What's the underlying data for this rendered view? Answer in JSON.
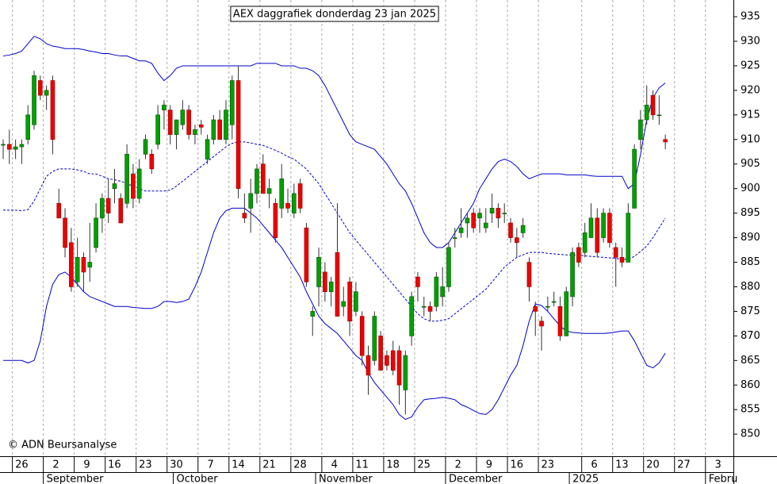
{
  "chart_data": {
    "type": "candlestick",
    "title": "AEX daggrafiek donderdag 23 jan 2025",
    "annotation": "© ADN Beursanalyse",
    "categories": [
      null,
      null,
      "26",
      null,
      null,
      null,
      null,
      "2",
      null,
      null,
      null,
      null,
      "9",
      null,
      null,
      null,
      null,
      "16",
      null,
      null,
      null,
      null,
      "23",
      null,
      null,
      null,
      null,
      "30",
      null,
      null,
      null,
      null,
      "7",
      null,
      null,
      null,
      null,
      "14",
      null,
      null,
      null,
      null,
      "21",
      null,
      null,
      null,
      null,
      "28",
      null,
      null,
      null,
      null,
      "4",
      null,
      null,
      null,
      null,
      "11",
      null,
      null,
      null,
      null,
      "18",
      null,
      null,
      null,
      null,
      "25",
      null,
      null,
      null,
      null,
      "2",
      null,
      null,
      null,
      null,
      "9",
      null,
      null,
      null,
      null,
      "16",
      null,
      null,
      null,
      null,
      "23",
      null,
      null,
      null,
      null,
      null,
      null,
      "6",
      null,
      null,
      null,
      null,
      "13",
      null,
      null,
      null,
      null,
      "20",
      null,
      null,
      null,
      null,
      "27",
      null,
      null,
      null,
      null,
      "3",
      null,
      null,
      null,
      null
    ],
    "month_categories": [
      null,
      null,
      null,
      null,
      null,
      null,
      null,
      "September",
      null,
      null,
      null,
      null,
      null,
      null,
      null,
      null,
      null,
      null,
      null,
      null,
      null,
      null,
      null,
      null,
      null,
      null,
      null,
      null,
      "October",
      null,
      null,
      null,
      null,
      null,
      null,
      null,
      null,
      null,
      null,
      null,
      null,
      null,
      null,
      null,
      null,
      null,
      null,
      null,
      null,
      null,
      null,
      "November",
      null,
      null,
      null,
      null,
      null,
      null,
      null,
      null,
      null,
      null,
      null,
      null,
      null,
      null,
      null,
      null,
      null,
      null,
      null,
      null,
      "December",
      null,
      null,
      null,
      null,
      null,
      null,
      null,
      null,
      null,
      null,
      null,
      null,
      null,
      null,
      null,
      null,
      null,
      null,
      null,
      "2025",
      null,
      null,
      null,
      null,
      null,
      null,
      null,
      null,
      null,
      null,
      null,
      null,
      null,
      null,
      null,
      null,
      null,
      null,
      null,
      null,
      null,
      "Febru",
      null,
      null,
      null,
      null
    ],
    "open": [
      909,
      909,
      908,
      908.5,
      910,
      913,
      922,
      919,
      922,
      897,
      894,
      889,
      881,
      886,
      884,
      888,
      894,
      898,
      900,
      898,
      897,
      903,
      898,
      907,
      907,
      909,
      916,
      916,
      911,
      913,
      916,
      911,
      913,
      906,
      910,
      914,
      910,
      913,
      922,
      895,
      896,
      899,
      905,
      899,
      897,
      896,
      897,
      895,
      901,
      892,
      874,
      880,
      883,
      879,
      887,
      876,
      881,
      875,
      874,
      866,
      865,
      870,
      866,
      867,
      867,
      859,
      870,
      882,
      876,
      876,
      876,
      878,
      880,
      890,
      891,
      893,
      895,
      894,
      892,
      895,
      896,
      895,
      893,
      890,
      891,
      885,
      876,
      873,
      876,
      877,
      876,
      870,
      878,
      888,
      887,
      890,
      894,
      890,
      895,
      888,
      886,
      885,
      896,
      910,
      914,
      919,
      915,
      910,
      null,
      null,
      null,
      null,
      null,
      null,
      null,
      null,
      null,
      null,
      null
    ],
    "high": [
      910,
      912,
      910,
      910,
      917,
      924,
      923,
      921,
      923,
      900,
      896,
      892,
      890,
      887,
      893,
      897,
      899,
      902,
      904,
      899,
      909,
      905,
      906,
      911,
      908,
      917,
      918,
      917,
      914,
      918,
      917,
      913,
      914,
      911,
      915,
      916,
      918,
      923,
      925,
      899,
      902,
      905,
      907,
      902,
      898,
      905,
      900,
      901,
      902,
      893,
      876,
      888,
      885,
      882,
      897,
      880,
      882,
      881,
      875,
      868,
      875,
      871,
      867,
      869,
      868,
      867,
      879,
      883,
      878,
      877,
      883,
      884,
      889,
      892,
      896,
      895,
      896,
      896,
      896,
      899,
      897,
      897,
      894,
      892,
      894,
      886,
      877,
      874,
      878,
      879,
      878,
      880,
      888,
      889,
      893,
      897,
      896,
      896,
      896,
      889,
      888,
      897,
      909,
      916,
      921,
      920,
      919,
      911,
      null,
      null,
      null,
      null,
      null,
      null,
      null,
      null,
      null,
      null,
      null
    ],
    "low": [
      906,
      905,
      906,
      905,
      909,
      912,
      918,
      916,
      907,
      894,
      886,
      879,
      880,
      879,
      881,
      887,
      891,
      893,
      897,
      893,
      896,
      896,
      897,
      906,
      903,
      908,
      912,
      909,
      908,
      912,
      910,
      909,
      911,
      905,
      909,
      910,
      909,
      910,
      898,
      893,
      891,
      897,
      899,
      896,
      889,
      894,
      895,
      894,
      895,
      880,
      870,
      876,
      877,
      876,
      874,
      874,
      870,
      874,
      864,
      858,
      864,
      863,
      863,
      862,
      856,
      854,
      868,
      877,
      874,
      873,
      875,
      876,
      879,
      888,
      890,
      890,
      891,
      891,
      891,
      893,
      892,
      893,
      889,
      886,
      890,
      877,
      870,
      867,
      875,
      876,
      869,
      870,
      876,
      884,
      886,
      890,
      886,
      889,
      888,
      880,
      884,
      885,
      896,
      908,
      913,
      914,
      913,
      908,
      null,
      null,
      null,
      null,
      null,
      null,
      null,
      null,
      null,
      null,
      null
    ],
    "close": [
      909,
      908,
      908.5,
      909,
      915,
      923,
      919,
      920,
      910,
      894,
      888,
      880,
      886,
      883,
      885,
      894,
      898,
      895,
      901,
      893,
      907,
      898,
      904,
      910,
      904,
      915,
      917,
      911,
      914,
      916,
      911,
      912,
      912.5,
      910,
      914,
      910,
      916,
      922,
      900,
      894,
      899,
      904,
      899,
      900,
      890,
      902,
      896,
      899,
      896,
      881,
      875,
      886,
      879,
      881,
      874,
      877,
      873,
      879,
      866,
      862,
      874,
      863,
      864,
      863,
      860,
      866,
      878,
      880,
      876,
      875,
      882,
      880,
      888,
      890,
      892,
      894,
      892,
      895,
      893,
      896,
      894,
      895,
      890,
      889,
      892.5,
      880,
      875,
      872,
      876,
      877,
      870,
      879,
      887,
      885,
      891,
      894,
      887,
      895,
      889,
      886,
      885,
      895,
      908,
      914,
      917,
      915,
      915,
      909.5,
      null,
      null,
      null,
      null,
      null,
      null,
      null,
      null,
      null,
      null,
      null
    ],
    "up_color": "#00a000",
    "down_color": "#ee0000",
    "bands": [
      {
        "color": "#0000cc",
        "dashed": false,
        "values": [
          927,
          927.2,
          927.5,
          928,
          929.5,
          931,
          930.5,
          929.5,
          929,
          928.8,
          928.5,
          928.5,
          928.5,
          928.3,
          928,
          927.8,
          927.5,
          927.5,
          927.2,
          927,
          927,
          926.5,
          926,
          926,
          925.5,
          923.5,
          922,
          923,
          924.5,
          925,
          925,
          925,
          925,
          925,
          925,
          925,
          925,
          925,
          925,
          925,
          925,
          925.5,
          925.5,
          925.5,
          925.5,
          925,
          925,
          925,
          924.5,
          924.5,
          924,
          923,
          921,
          918.5,
          916,
          913.5,
          911,
          909.5,
          909,
          908.5,
          908,
          906.5,
          905,
          903,
          901,
          899.5,
          897,
          894,
          891,
          889,
          888,
          888,
          889,
          891,
          893,
          895,
          897,
          900,
          902,
          904,
          905.5,
          906,
          905.5,
          904.5,
          903,
          902,
          902.5,
          903,
          903,
          903,
          903,
          902.8,
          902.8,
          902.8,
          902.8,
          902.6,
          902.5,
          902.5,
          902.5,
          902.5,
          902.5,
          900,
          901,
          907,
          914,
          918.5,
          920.5,
          921.5,
          null,
          null,
          null,
          null,
          null,
          null,
          null,
          null,
          null,
          null,
          null
        ]
      },
      {
        "color": "#0000cc",
        "dashed": true,
        "values": [
          895.6,
          895.6,
          895.6,
          895.5,
          895.7,
          897.5,
          900,
          902.5,
          903.5,
          904,
          904,
          904,
          903.8,
          903.5,
          903,
          903,
          902.5,
          902,
          901.8,
          901.5,
          901,
          900.5,
          900,
          899.5,
          899.5,
          899.5,
          899.5,
          899.7,
          900.5,
          901.5,
          902.5,
          903.5,
          904.5,
          905.5,
          906.5,
          907.5,
          908.5,
          909.2,
          909.5,
          909.5,
          909.3,
          909,
          908.8,
          908.3,
          907.8,
          907.2,
          906.5,
          906,
          905,
          904,
          902.5,
          901,
          899,
          897,
          895,
          893,
          891,
          889.5,
          888,
          886.5,
          885,
          883.5,
          882,
          880.5,
          879,
          877.5,
          876,
          874.5,
          873.5,
          873,
          873,
          873.2,
          873.5,
          874.5,
          875.5,
          876.5,
          877.5,
          878.5,
          879.5,
          881,
          882.5,
          884,
          885,
          886,
          886.5,
          887,
          887,
          887,
          886.8,
          886.7,
          886.6,
          886.5,
          886.5,
          886.4,
          886.3,
          886.2,
          886.1,
          886,
          885.9,
          885.8,
          885.6,
          885.6,
          886.2,
          887.2,
          888.3,
          890,
          892,
          894,
          null,
          null,
          null,
          null,
          null,
          null,
          null,
          null,
          null,
          null,
          null
        ]
      },
      {
        "color": "#0000cc",
        "dashed": false,
        "values": [
          865,
          865,
          865,
          865,
          864.5,
          865,
          869,
          876,
          880.5,
          882.5,
          883,
          882,
          880.5,
          879,
          878,
          877.5,
          877,
          876.5,
          876,
          876,
          876,
          875.8,
          875.7,
          875.6,
          875.6,
          876,
          877,
          877,
          876.8,
          877,
          877.5,
          880,
          883,
          887,
          891,
          894,
          895.5,
          896,
          896,
          896,
          895,
          894,
          892.5,
          891,
          889.5,
          888,
          886,
          884,
          882,
          879,
          876.5,
          874,
          872.5,
          871.5,
          870.5,
          869,
          867.5,
          866,
          865,
          862.5,
          860.5,
          859,
          857.5,
          856,
          854,
          853,
          853.5,
          855.5,
          857,
          857.2,
          857.3,
          857.5,
          857.3,
          857,
          856,
          855.5,
          854.8,
          854.2,
          854,
          855,
          857,
          859.5,
          862,
          864,
          868,
          873,
          876.5,
          876.2,
          875,
          873.5,
          872,
          871,
          870.7,
          870.6,
          870.5,
          870.5,
          870.5,
          870.5,
          870.6,
          870.8,
          871,
          871,
          869,
          866.5,
          864,
          863.5,
          864.5,
          866.5,
          null,
          null,
          null,
          null,
          null,
          null,
          null,
          null,
          null,
          null,
          null
        ]
      }
    ],
    "ylim": [
      845.5,
      938.4
    ],
    "yticks": [
      850,
      855,
      860,
      865,
      870,
      875,
      880,
      885,
      890,
      895,
      900,
      905,
      910,
      915,
      920,
      925,
      930,
      935
    ],
    "grid": true
  }
}
